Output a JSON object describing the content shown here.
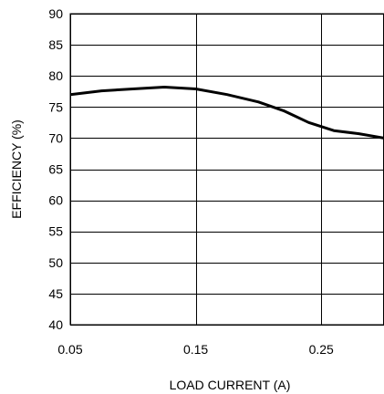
{
  "chart_data": {
    "type": "line",
    "xlabel": "LOAD CURRENT (A)",
    "ylabel": "EFFICIENCY (%)",
    "xlim": [
      0.05,
      0.3
    ],
    "ylim": [
      40,
      90
    ],
    "x_ticks": [
      0.05,
      0.15,
      0.25
    ],
    "x_tick_labels": [
      "0.05",
      "0.15",
      "0.25"
    ],
    "y_ticks": [
      40,
      45,
      50,
      55,
      60,
      65,
      70,
      75,
      80,
      85,
      90
    ],
    "y_tick_labels": [
      "40",
      "45",
      "50",
      "55",
      "60",
      "65",
      "70",
      "75",
      "80",
      "85",
      "90"
    ],
    "grid": true,
    "series": [
      {
        "x": [
          0.05,
          0.075,
          0.1,
          0.125,
          0.15,
          0.175,
          0.2,
          0.22,
          0.24,
          0.26,
          0.28,
          0.3
        ],
        "y": [
          77.0,
          77.6,
          77.9,
          78.2,
          77.9,
          77.0,
          75.8,
          74.4,
          72.5,
          71.2,
          70.7,
          70.0
        ],
        "color": "#000000"
      }
    ]
  }
}
